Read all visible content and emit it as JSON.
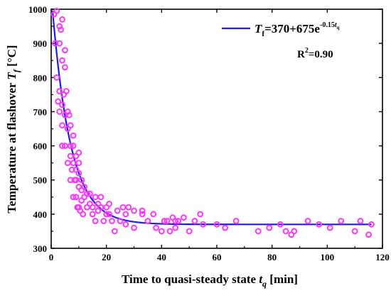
{
  "chart_data": {
    "type": "scatter",
    "xlabel": {
      "main": "Time to quasi-steady state ",
      "symbol": "t",
      "sub": "q",
      "unit": " [min]"
    },
    "ylabel": {
      "main": "Temperature at flashover ",
      "symbol": "T",
      "sub": "f",
      "unit": " [°C]"
    },
    "xlim": [
      0,
      120
    ],
    "ylim": [
      300,
      1000
    ],
    "xticks": [
      0,
      20,
      40,
      60,
      80,
      100,
      120
    ],
    "yticks": [
      300,
      400,
      500,
      600,
      700,
      800,
      900,
      1000
    ],
    "grid": false,
    "legend_position": "top-right",
    "colors": {
      "points": "#ff33ff",
      "fit": "#1a1aff",
      "axes": "#000000"
    },
    "fit": {
      "model": "exponential",
      "a": 370,
      "b": 675,
      "k": 0.15,
      "equation": {
        "lhs_symbol": "T",
        "lhs_sub": "f",
        "rhs": "=370+675e",
        "exp": "-0.15",
        "exp_symbol": "t",
        "exp_sub": "q"
      }
    },
    "r2_label": {
      "prefix": "R",
      "sup": "2",
      "value": "=0.90"
    },
    "points": [
      [
        1,
        985
      ],
      [
        1.5,
        900
      ],
      [
        2,
        995
      ],
      [
        2,
        800
      ],
      [
        2.5,
        730
      ],
      [
        3,
        950
      ],
      [
        3,
        900
      ],
      [
        3,
        760
      ],
      [
        3,
        700
      ],
      [
        3.5,
        940
      ],
      [
        4,
        970
      ],
      [
        4,
        850
      ],
      [
        4,
        720
      ],
      [
        4,
        660
      ],
      [
        4,
        600
      ],
      [
        4.5,
        750
      ],
      [
        5,
        880
      ],
      [
        5,
        830
      ],
      [
        5,
        690
      ],
      [
        5,
        600
      ],
      [
        5.5,
        760
      ],
      [
        6,
        700
      ],
      [
        6,
        650
      ],
      [
        6,
        550
      ],
      [
        6.5,
        690
      ],
      [
        7,
        660
      ],
      [
        7,
        600
      ],
      [
        7,
        570
      ],
      [
        7,
        500
      ],
      [
        7.5,
        530
      ],
      [
        8,
        630
      ],
      [
        8,
        600
      ],
      [
        8,
        550
      ],
      [
        8,
        450
      ],
      [
        8.5,
        500
      ],
      [
        9,
        570
      ],
      [
        9,
        530
      ],
      [
        9,
        500
      ],
      [
        9,
        450
      ],
      [
        9.5,
        420
      ],
      [
        10,
        580
      ],
      [
        10,
        550
      ],
      [
        10,
        520
      ],
      [
        10,
        480
      ],
      [
        10,
        420
      ],
      [
        10.5,
        410
      ],
      [
        11,
        500
      ],
      [
        11,
        470
      ],
      [
        11,
        440
      ],
      [
        11.5,
        400
      ],
      [
        12,
        480
      ],
      [
        12,
        450
      ],
      [
        13,
        460
      ],
      [
        13,
        420
      ],
      [
        14,
        460
      ],
      [
        14,
        430
      ],
      [
        15,
        420
      ],
      [
        15,
        400
      ],
      [
        16,
        450
      ],
      [
        16,
        380
      ],
      [
        17,
        430
      ],
      [
        17,
        410
      ],
      [
        18,
        450
      ],
      [
        18,
        420
      ],
      [
        19,
        380
      ],
      [
        20,
        420
      ],
      [
        20,
        400
      ],
      [
        21,
        430
      ],
      [
        21,
        400
      ],
      [
        22,
        380
      ],
      [
        23,
        350
      ],
      [
        24,
        410
      ],
      [
        25,
        380
      ],
      [
        26,
        420
      ],
      [
        27,
        400
      ],
      [
        27,
        370
      ],
      [
        28,
        420
      ],
      [
        30,
        410
      ],
      [
        30,
        360
      ],
      [
        33,
        410
      ],
      [
        33,
        400
      ],
      [
        35,
        380
      ],
      [
        37,
        400
      ],
      [
        38,
        360
      ],
      [
        40,
        350
      ],
      [
        41,
        380
      ],
      [
        42,
        380
      ],
      [
        43,
        350
      ],
      [
        44,
        390
      ],
      [
        45,
        380
      ],
      [
        45,
        360
      ],
      [
        46,
        380
      ],
      [
        48,
        390
      ],
      [
        50,
        350
      ],
      [
        52,
        380
      ],
      [
        54,
        400
      ],
      [
        55,
        370
      ],
      [
        60,
        370
      ],
      [
        63,
        360
      ],
      [
        67,
        380
      ],
      [
        75,
        350
      ],
      [
        79,
        360
      ],
      [
        83,
        370
      ],
      [
        85,
        350
      ],
      [
        87,
        340
      ],
      [
        88,
        350
      ],
      [
        93,
        380
      ],
      [
        97,
        370
      ],
      [
        101,
        360
      ],
      [
        105,
        380
      ],
      [
        110,
        350
      ],
      [
        112,
        380
      ],
      [
        115,
        340
      ],
      [
        116,
        370
      ]
    ]
  }
}
